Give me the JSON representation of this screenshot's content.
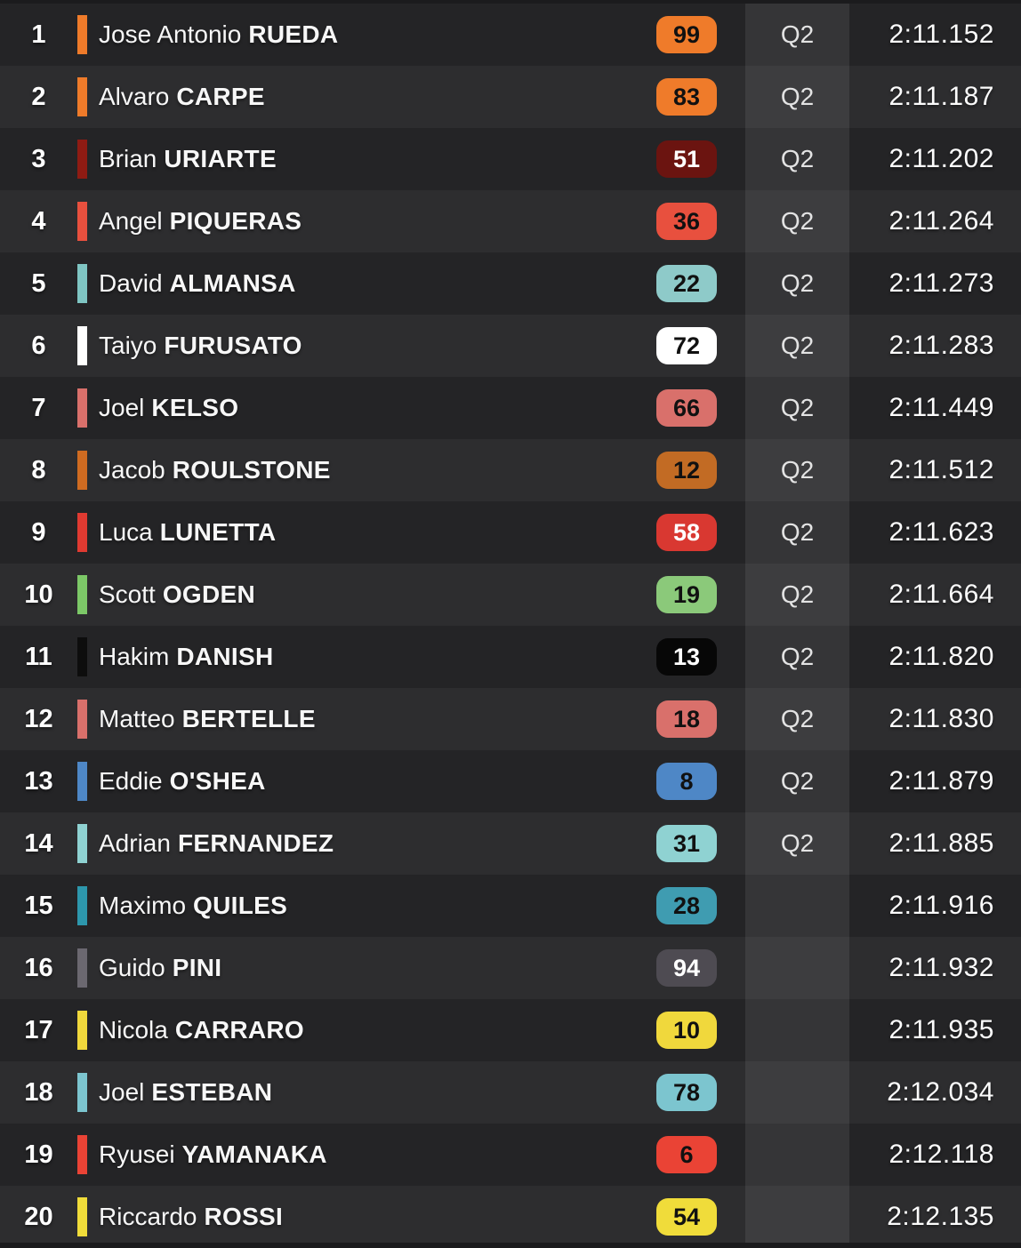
{
  "colors": {
    "row_odd_bg": "#242426",
    "row_even_bg": "#2d2d2f",
    "session_band_overlay": "rgba(255,255,255,0.08)",
    "edge_strip": "#1b1b1d",
    "text_primary": "#f7f7f7"
  },
  "rows": [
    {
      "pos": "1",
      "rider_first": "Jose Antonio",
      "rider_last": "RUEDA",
      "number": "99",
      "number_bg": "#ef7b2a",
      "number_color": "#111111",
      "bar_color": "#ef7b2a",
      "session": "Q2",
      "time": "2:11.152"
    },
    {
      "pos": "2",
      "rider_first": "Alvaro",
      "rider_last": "CARPE",
      "number": "83",
      "number_bg": "#ef7b2a",
      "number_color": "#111111",
      "bar_color": "#ef7b2a",
      "session": "Q2",
      "time": "2:11.187"
    },
    {
      "pos": "3",
      "rider_first": "Brian",
      "rider_last": "URIARTE",
      "number": "51",
      "number_bg": "#6b1410",
      "number_color": "#ffffff",
      "bar_color": "#8e1b13",
      "session": "Q2",
      "time": "2:11.202"
    },
    {
      "pos": "4",
      "rider_first": "Angel",
      "rider_last": "PIQUERAS",
      "number": "36",
      "number_bg": "#e8503e",
      "number_color": "#111111",
      "bar_color": "#e8503e",
      "session": "Q2",
      "time": "2:11.264"
    },
    {
      "pos": "5",
      "rider_first": "David",
      "rider_last": "ALMANSA",
      "number": "22",
      "number_bg": "#8ecac9",
      "number_color": "#111111",
      "bar_color": "#7fc5c3",
      "session": "Q2",
      "time": "2:11.273"
    },
    {
      "pos": "6",
      "rider_first": "Taiyo",
      "rider_last": "FURUSATO",
      "number": "72",
      "number_bg": "#ffffff",
      "number_color": "#111111",
      "bar_color": "#ffffff",
      "session": "Q2",
      "time": "2:11.283"
    },
    {
      "pos": "7",
      "rider_first": "Joel",
      "rider_last": "KELSO",
      "number": "66",
      "number_bg": "#d9706b",
      "number_color": "#111111",
      "bar_color": "#d9706b",
      "session": "Q2",
      "time": "2:11.449"
    },
    {
      "pos": "8",
      "rider_first": "Jacob",
      "rider_last": "ROULSTONE",
      "number": "12",
      "number_bg": "#c26b24",
      "number_color": "#111111",
      "bar_color": "#cf6b21",
      "session": "Q2",
      "time": "2:11.512"
    },
    {
      "pos": "9",
      "rider_first": "Luca",
      "rider_last": "LUNETTA",
      "number": "58",
      "number_bg": "#d93831",
      "number_color": "#ffffff",
      "bar_color": "#e03a31",
      "session": "Q2",
      "time": "2:11.623"
    },
    {
      "pos": "10",
      "rider_first": "Scott",
      "rider_last": "OGDEN",
      "number": "19",
      "number_bg": "#8bc97a",
      "number_color": "#111111",
      "bar_color": "#7cc867",
      "session": "Q2",
      "time": "2:11.664"
    },
    {
      "pos": "11",
      "rider_first": "Hakim",
      "rider_last": "DANISH",
      "number": "13",
      "number_bg": "#070707",
      "number_color": "#ffffff",
      "bar_color": "#0d0d0d",
      "session": "Q2",
      "time": "2:11.820"
    },
    {
      "pos": "12",
      "rider_first": "Matteo",
      "rider_last": "BERTELLE",
      "number": "18",
      "number_bg": "#d9706b",
      "number_color": "#111111",
      "bar_color": "#d9706b",
      "session": "Q2",
      "time": "2:11.830"
    },
    {
      "pos": "13",
      "rider_first": "Eddie",
      "rider_last": "O'SHEA",
      "number": "8",
      "number_bg": "#4e87c6",
      "number_color": "#111111",
      "bar_color": "#4e87c6",
      "session": "Q2",
      "time": "2:11.879"
    },
    {
      "pos": "14",
      "rider_first": "Adrian",
      "rider_last": "FERNANDEZ",
      "number": "31",
      "number_bg": "#8fd2d2",
      "number_color": "#111111",
      "bar_color": "#8fd2d2",
      "session": "Q2",
      "time": "2:11.885"
    },
    {
      "pos": "15",
      "rider_first": "Maximo",
      "rider_last": "QUILES",
      "number": "28",
      "number_bg": "#3f9cb1",
      "number_color": "#111111",
      "bar_color": "#2d97ac",
      "session": "",
      "time": "2:11.916"
    },
    {
      "pos": "16",
      "rider_first": "Guido",
      "rider_last": "PINI",
      "number": "94",
      "number_bg": "#4e4b52",
      "number_color": "#ffffff",
      "bar_color": "#6b6870",
      "session": "",
      "time": "2:11.932"
    },
    {
      "pos": "17",
      "rider_first": "Nicola",
      "rider_last": "CARRARO",
      "number": "10",
      "number_bg": "#f0d83c",
      "number_color": "#111111",
      "bar_color": "#f0d83c",
      "session": "",
      "time": "2:11.935"
    },
    {
      "pos": "18",
      "rider_first": "Joel",
      "rider_last": "ESTEBAN",
      "number": "78",
      "number_bg": "#7cc5cf",
      "number_color": "#111111",
      "bar_color": "#7cc5cf",
      "session": "",
      "time": "2:12.034"
    },
    {
      "pos": "19",
      "rider_first": "Ryusei",
      "rider_last": "YAMANAKA",
      "number": "6",
      "number_bg": "#ea4335",
      "number_color": "#111111",
      "bar_color": "#ea4335",
      "session": "",
      "time": "2:12.118"
    },
    {
      "pos": "20",
      "rider_first": "Riccardo",
      "rider_last": "ROSSI",
      "number": "54",
      "number_bg": "#f0dc3a",
      "number_color": "#111111",
      "bar_color": "#f0dc3a",
      "session": "",
      "time": "2:12.135"
    }
  ]
}
